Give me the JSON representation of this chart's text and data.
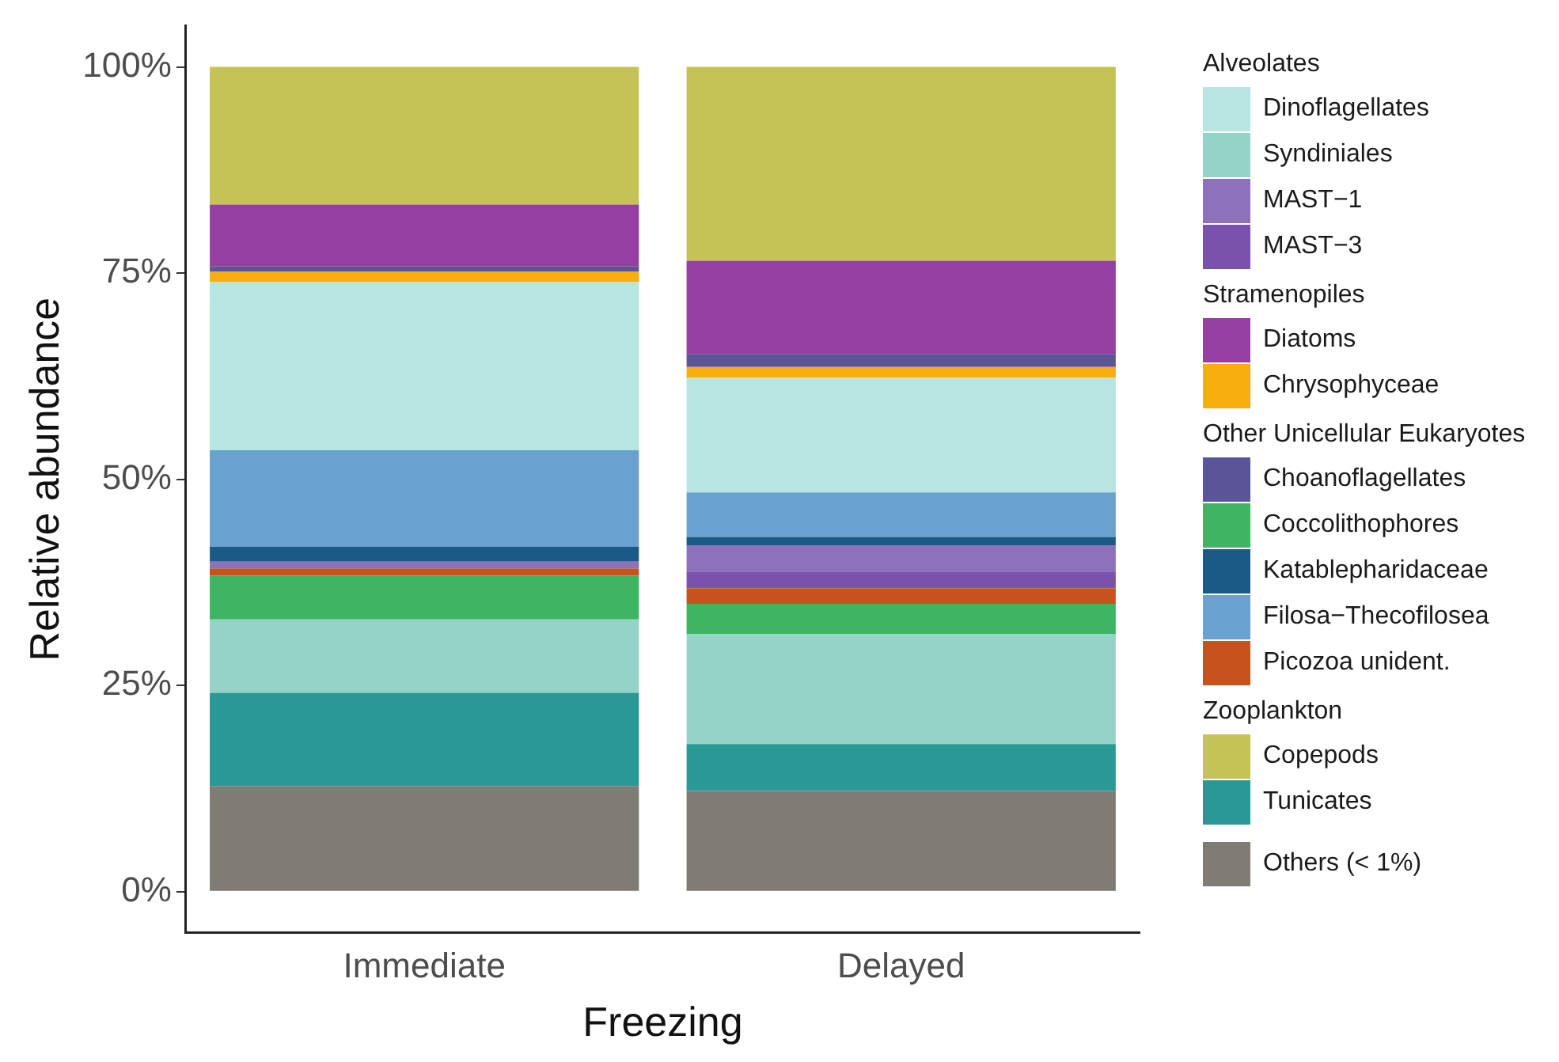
{
  "chart_data": {
    "type": "bar",
    "stacked": true,
    "xlabel": "Freezing",
    "ylabel": "Relative abundance",
    "categories": [
      "Immediate",
      "Delayed"
    ],
    "ylim": [
      -5,
      105
    ],
    "yticks": [
      {
        "value": 0,
        "label": "0%"
      },
      {
        "value": 25,
        "label": "25%"
      },
      {
        "value": 50,
        "label": "50%"
      },
      {
        "value": 75,
        "label": "75%"
      },
      {
        "value": 100,
        "label": "100%"
      }
    ],
    "grid": false,
    "legend": "right",
    "annotations": [
      "Alveolates",
      "Stramenopiles",
      "Other Unicellular Eukaryotes",
      "Zooplankton"
    ],
    "series": [
      {
        "name": "Others (< 1%)",
        "color": "#7f7b75",
        "values": [
          12.8,
          12.2
        ]
      },
      {
        "name": "Tunicates",
        "color": "#2a9895",
        "values": [
          11.3,
          5.7
        ]
      },
      {
        "name": "Syndiniales",
        "color": "#95d3c8",
        "values": [
          8.9,
          13.3
        ]
      },
      {
        "name": "Coccolithophores",
        "color": "#3db562",
        "values": [
          5.3,
          3.7
        ]
      },
      {
        "name": "Picozoa unident.",
        "color": "#c6521e",
        "values": [
          0.9,
          1.9
        ]
      },
      {
        "name": "MAST−3",
        "color": "#7952ab",
        "values": [
          0,
          2.0
        ]
      },
      {
        "name": "MAST−1",
        "color": "#8e71bd",
        "values": [
          0.8,
          3.2
        ]
      },
      {
        "name": "Katablepharidaceae",
        "color": "#1c5a86",
        "values": [
          1.8,
          1.0
        ]
      },
      {
        "name": "Filosa−Thecofilosea",
        "color": "#6aa2cf",
        "values": [
          11.7,
          5.4
        ]
      },
      {
        "name": "Dinoflagellates",
        "color": "#b6e5e2",
        "values": [
          20.4,
          13.9
        ]
      },
      {
        "name": "Chrysophyceae",
        "color": "#f8ae0d",
        "values": [
          1.3,
          1.3
        ]
      },
      {
        "name": "Choanoflagellates",
        "color": "#5a5599",
        "values": [
          0.6,
          1.6
        ]
      },
      {
        "name": "Diatoms",
        "color": "#963fa2",
        "values": [
          7.5,
          11.3
        ]
      },
      {
        "name": "Copepods",
        "color": "#c5c355",
        "values": [
          16.7,
          23.5
        ]
      }
    ]
  }
}
